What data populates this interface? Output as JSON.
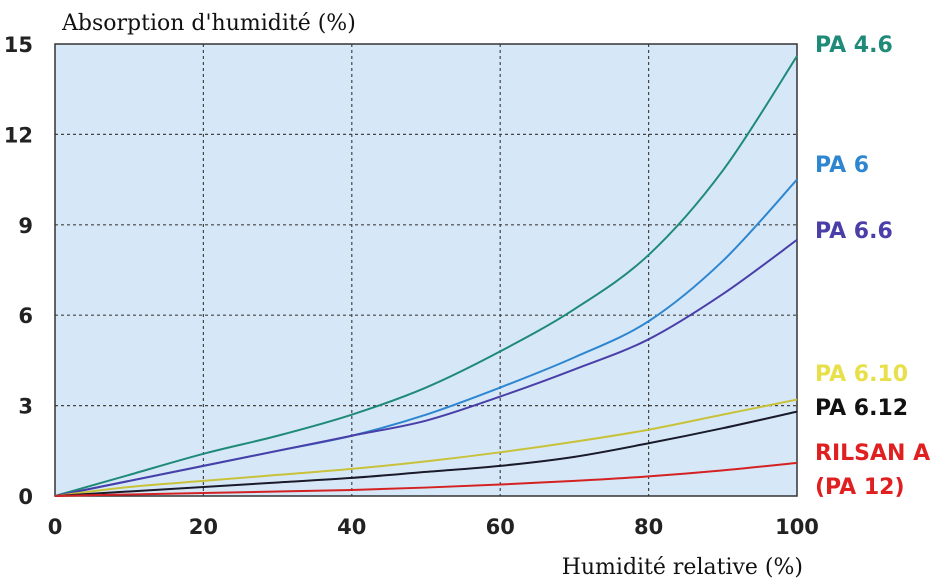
{
  "chart_data": {
    "type": "line",
    "ylabel": "Absorption d'humidité (%)",
    "xlabel": "Humidité relative (%)",
    "xlim": [
      0,
      100
    ],
    "ylim": [
      0,
      15
    ],
    "xticks": [
      "0",
      "20",
      "40",
      "60",
      "80",
      "100"
    ],
    "yticks": [
      "0",
      "3",
      "6",
      "9",
      "12",
      "15"
    ],
    "grid": true,
    "legend_placement": "right",
    "background_color": "#d6e8f7",
    "series": [
      {
        "name": "PA 4.6",
        "color": "#1f8a78",
        "x": [
          0,
          10,
          20,
          30,
          40,
          50,
          60,
          70,
          80,
          90,
          100
        ],
        "y": [
          0,
          0.7,
          1.4,
          2.0,
          2.7,
          3.6,
          4.8,
          6.2,
          8.0,
          10.8,
          14.6
        ]
      },
      {
        "name": "PA 6",
        "color": "#2f86d0",
        "x": [
          0,
          10,
          20,
          30,
          40,
          50,
          60,
          70,
          80,
          90,
          100
        ],
        "y": [
          0,
          0.5,
          1.0,
          1.5,
          2.0,
          2.7,
          3.6,
          4.6,
          5.8,
          7.8,
          10.5
        ]
      },
      {
        "name": "PA 6.6",
        "color": "#4a3fa8",
        "x": [
          0,
          10,
          20,
          30,
          40,
          50,
          60,
          70,
          80,
          90,
          100
        ],
        "y": [
          0,
          0.5,
          1.0,
          1.5,
          2.0,
          2.5,
          3.3,
          4.2,
          5.2,
          6.7,
          8.5
        ]
      },
      {
        "name": "PA 6.10",
        "color": "#c8c23a",
        "x": [
          0,
          10,
          20,
          30,
          40,
          50,
          60,
          70,
          80,
          90,
          100
        ],
        "y": [
          0,
          0.3,
          0.5,
          0.7,
          0.9,
          1.15,
          1.45,
          1.8,
          2.2,
          2.7,
          3.2
        ]
      },
      {
        "name": "PA 6.12",
        "color": "#1a1a2a",
        "x": [
          0,
          10,
          20,
          30,
          40,
          50,
          60,
          70,
          80,
          90,
          100
        ],
        "y": [
          0,
          0.15,
          0.3,
          0.45,
          0.6,
          0.8,
          1.0,
          1.3,
          1.75,
          2.25,
          2.8
        ]
      },
      {
        "name": "RILSAN A (PA 12)",
        "color": "#d42222",
        "x": [
          0,
          10,
          20,
          30,
          40,
          50,
          60,
          70,
          80,
          90,
          100
        ],
        "y": [
          0,
          0.05,
          0.1,
          0.15,
          0.2,
          0.28,
          0.38,
          0.5,
          0.65,
          0.85,
          1.1
        ]
      }
    ],
    "legend_labels": [
      {
        "lines": [
          "PA 4.6"
        ],
        "color": "#1f8a78"
      },
      {
        "lines": [
          "PA 6"
        ],
        "color": "#2f86d0"
      },
      {
        "lines": [
          "PA 6.6"
        ],
        "color": "#4a3fa8"
      },
      {
        "lines": [
          "PA 6.10"
        ],
        "color": "#e8e04a"
      },
      {
        "lines": [
          "PA 6.12"
        ],
        "color": "#111111"
      },
      {
        "lines": [
          "RILSAN A",
          "(PA 12)"
        ],
        "color": "#e02020"
      }
    ]
  }
}
